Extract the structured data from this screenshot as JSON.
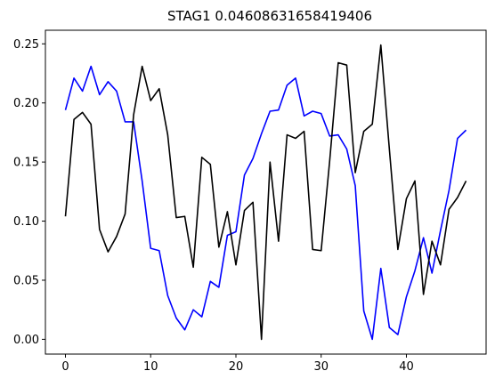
{
  "chart_data": {
    "type": "line",
    "title": "STAG1 0.04608631658419406",
    "xlabel": "",
    "ylabel": "",
    "xlim": [
      -2.35,
      49.35
    ],
    "ylim": [
      -0.0125,
      0.2615
    ],
    "xticks": [
      0,
      10,
      20,
      30,
      40
    ],
    "yticks": [
      0.0,
      0.05,
      0.1,
      0.15,
      0.2,
      0.25
    ],
    "ytick_labels": [
      "0.00",
      "0.05",
      "0.10",
      "0.15",
      "0.20",
      "0.25"
    ],
    "grid": false,
    "legend": "none",
    "x": [
      0,
      1,
      2,
      3,
      4,
      5,
      6,
      7,
      8,
      9,
      10,
      11,
      12,
      13,
      14,
      15,
      16,
      17,
      18,
      19,
      20,
      21,
      22,
      23,
      24,
      25,
      26,
      27,
      28,
      29,
      30,
      31,
      32,
      33,
      34,
      35,
      36,
      37,
      38,
      39,
      40,
      41,
      42,
      43,
      44,
      45,
      46,
      47
    ],
    "series": [
      {
        "color": "#0000ff",
        "values": [
          0.194,
          0.221,
          0.21,
          0.231,
          0.207,
          0.218,
          0.21,
          0.184,
          0.184,
          0.134,
          0.077,
          0.075,
          0.037,
          0.018,
          0.008,
          0.025,
          0.019,
          0.049,
          0.044,
          0.088,
          0.091,
          0.139,
          0.153,
          0.174,
          0.193,
          0.194,
          0.215,
          0.221,
          0.189,
          0.193,
          0.191,
          0.172,
          0.173,
          0.161,
          0.13,
          0.024,
          0.0,
          0.06,
          0.01,
          0.004,
          0.036,
          0.058,
          0.086,
          0.056,
          0.092,
          0.126,
          0.17,
          0.177
        ]
      },
      {
        "color": "#000000",
        "values": [
          0.104,
          0.186,
          0.192,
          0.182,
          0.093,
          0.074,
          0.087,
          0.106,
          0.19,
          0.231,
          0.202,
          0.212,
          0.173,
          0.103,
          0.104,
          0.061,
          0.154,
          0.148,
          0.078,
          0.108,
          0.063,
          0.109,
          0.116,
          0.0,
          0.15,
          0.083,
          0.173,
          0.17,
          0.176,
          0.076,
          0.075,
          0.151,
          0.234,
          0.232,
          0.141,
          0.176,
          0.182,
          0.249,
          0.161,
          0.076,
          0.119,
          0.134,
          0.038,
          0.083,
          0.063,
          0.11,
          0.12,
          0.134
        ]
      }
    ]
  }
}
